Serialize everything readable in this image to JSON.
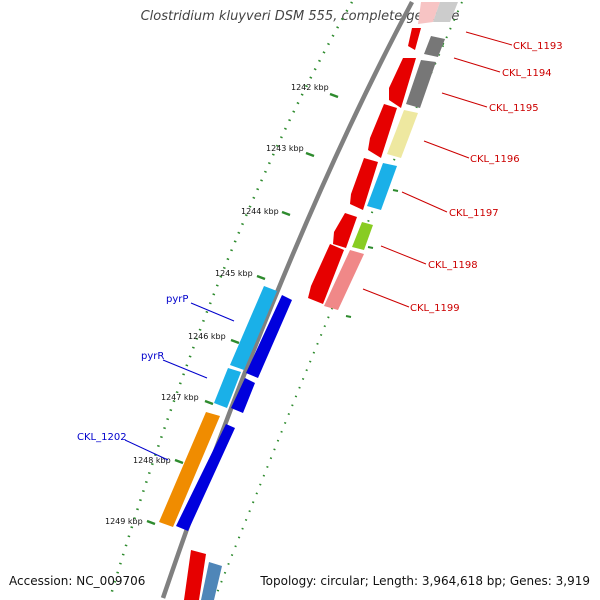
{
  "header": {
    "title": "Clostridium kluyveri DSM 555, complete genome"
  },
  "footer": {
    "accession": "Accession: NC_009706",
    "summary": "Topology: circular; Length: 3,964,618 bp; Genes: 3,919"
  },
  "ruler": {
    "labels": [
      "1242 kbp",
      "1243 kbp",
      "1244 kbp",
      "1245 kbp",
      "1246 kbp",
      "1247 kbp",
      "1248 kbp",
      "1249 kbp"
    ]
  },
  "gene_labels": [
    {
      "name": "CKL_1193",
      "color": "#cc0000"
    },
    {
      "name": "CKL_1194",
      "color": "#cc0000"
    },
    {
      "name": "CKL_1195",
      "color": "#cc0000"
    },
    {
      "name": "CKL_1196",
      "color": "#cc0000"
    },
    {
      "name": "CKL_1197",
      "color": "#cc0000"
    },
    {
      "name": "CKL_1198",
      "color": "#cc0000"
    },
    {
      "name": "CKL_1199",
      "color": "#cc0000"
    },
    {
      "name": "pyrP",
      "color": "#0000cc"
    },
    {
      "name": "pyrR",
      "color": "#0000cc"
    },
    {
      "name": "CKL_1202",
      "color": "#0000cc"
    }
  ],
  "colors": {
    "backbone": "#808080",
    "ruler_dots": "#2e8b2e",
    "red": "#e60000",
    "gray": "#777777",
    "yellow": "#eee8a0",
    "cyan": "#1ab0e8",
    "green": "#88cc22",
    "pink": "#f08888",
    "blue": "#0000dd",
    "orange": "#f08c00",
    "steel": "#4f86b8"
  }
}
